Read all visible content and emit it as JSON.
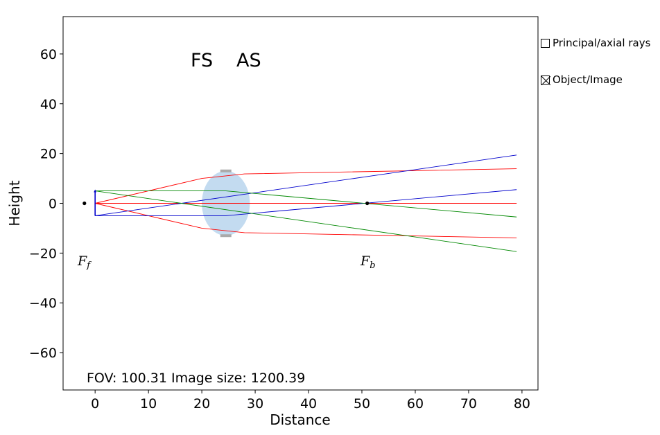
{
  "chart_data": {
    "type": "line",
    "xlabel": "Distance",
    "ylabel": "Height",
    "xlim": [
      -6,
      83
    ],
    "ylim": [
      -75,
      75
    ],
    "xticks": [
      0,
      10,
      20,
      30,
      40,
      50,
      60,
      70,
      80
    ],
    "yticks": [
      -60,
      -40,
      -20,
      0,
      20,
      40,
      60
    ],
    "tick_labels": {
      "x": [
        "0",
        "10",
        "20",
        "30",
        "40",
        "50",
        "60",
        "70",
        "80"
      ],
      "y": [
        "−60",
        "−40",
        "−20",
        "0",
        "20",
        "40",
        "60"
      ]
    },
    "grid": false,
    "annotations": {
      "field_stop": "FS",
      "aperture_stop": "AS",
      "info": "FOV: 100.31 Image size: 1200.39",
      "front_focal": {
        "base": "F",
        "sub": "f"
      },
      "back_focal": {
        "base": "F",
        "sub": "b"
      }
    },
    "focal_points": [
      {
        "name": "front",
        "x": -2,
        "y": 0
      },
      {
        "name": "back",
        "x": 51,
        "y": 0
      }
    ],
    "lens": {
      "center_x": 24.5,
      "half_width": 4.5,
      "half_height": 13,
      "color": "#c3dbf0",
      "edge_color": "#aaaaaa"
    },
    "object": {
      "x": 0,
      "y_from": -5,
      "y_to": 5,
      "color": "#0000cc"
    },
    "series": [
      {
        "color": "#ff0000",
        "points": [
          [
            0,
            0
          ],
          [
            20,
            10
          ],
          [
            28,
            11.8
          ],
          [
            79,
            13.9
          ]
        ]
      },
      {
        "color": "#ff0000",
        "points": [
          [
            0,
            0
          ],
          [
            20,
            -10
          ],
          [
            28,
            -11.8
          ],
          [
            79,
            -13.9
          ]
        ]
      },
      {
        "color": "#ff0000",
        "points": [
          [
            0,
            0
          ],
          [
            79,
            0
          ]
        ]
      },
      {
        "color": "#0000cc",
        "points": [
          [
            0,
            -5
          ],
          [
            79,
            19.4
          ]
        ]
      },
      {
        "color": "#0000cc",
        "points": [
          [
            0,
            -5
          ],
          [
            24.5,
            -5
          ],
          [
            79,
            5.5
          ]
        ]
      },
      {
        "color": "#008800",
        "points": [
          [
            0,
            5
          ],
          [
            24.5,
            5
          ],
          [
            79,
            -5.5
          ]
        ]
      },
      {
        "color": "#008800",
        "points": [
          [
            0,
            5
          ],
          [
            79,
            -19.4
          ]
        ]
      }
    ]
  },
  "controls": {
    "principal_label": "Principal/axial rays",
    "principal_checked": false,
    "object_label": "Object/Image",
    "object_checked": true
  }
}
